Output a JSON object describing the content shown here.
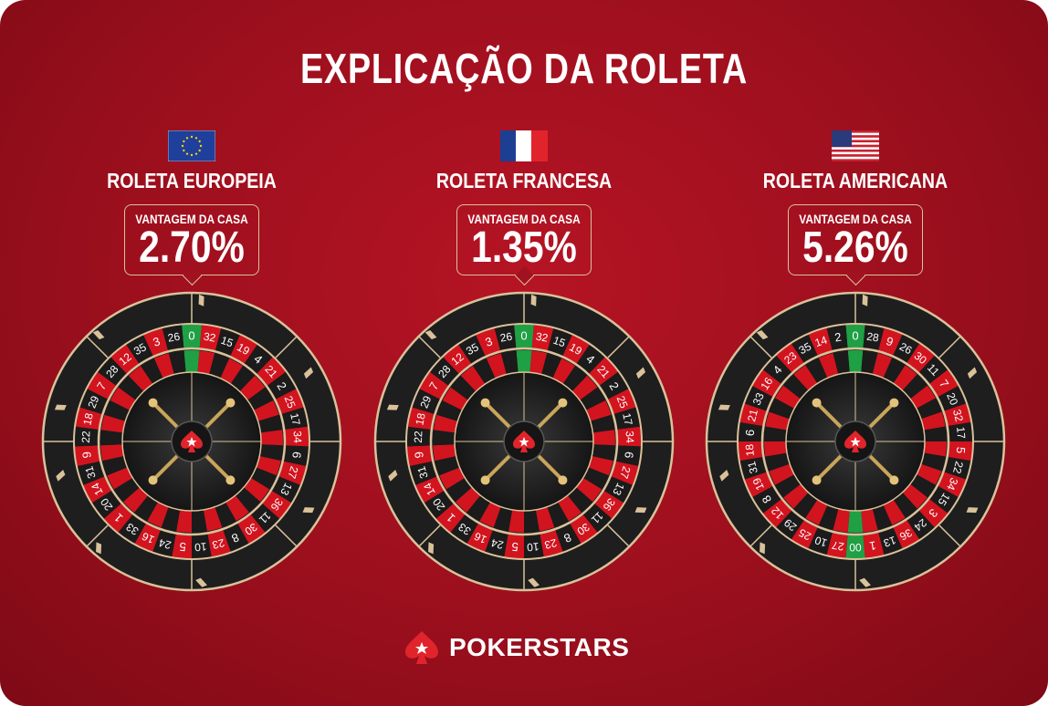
{
  "title": "EXPLICAÇÃO DA ROLETA",
  "wheels": [
    {
      "name": "ROLETA EUROPEIA",
      "flag": "eu-flag",
      "house_edge_label": "VANTAGEM DA CASA",
      "house_edge": "2.70%",
      "numbers": [
        "0",
        "32",
        "15",
        "19",
        "4",
        "21",
        "2",
        "25",
        "17",
        "34",
        "6",
        "27",
        "13",
        "36",
        "11",
        "30",
        "8",
        "23",
        "10",
        "5",
        "24",
        "16",
        "33",
        "1",
        "20",
        "14",
        "31",
        "9",
        "22",
        "18",
        "29",
        "7",
        "28",
        "12",
        "35",
        "3",
        "26"
      ]
    },
    {
      "name": "ROLETA FRANCESA",
      "flag": "france-flag",
      "house_edge_label": "VANTAGEM DA CASA",
      "house_edge": "1.35%",
      "numbers": [
        "0",
        "32",
        "15",
        "19",
        "4",
        "21",
        "2",
        "25",
        "17",
        "34",
        "6",
        "27",
        "13",
        "36",
        "11",
        "30",
        "8",
        "23",
        "10",
        "5",
        "24",
        "16",
        "33",
        "1",
        "20",
        "14",
        "31",
        "9",
        "22",
        "18",
        "29",
        "7",
        "28",
        "12",
        "35",
        "3",
        "26"
      ]
    },
    {
      "name": "ROLETA AMERICANA",
      "flag": "usa-flag",
      "house_edge_label": "VANTAGEM DA CASA",
      "house_edge": "5.26%",
      "numbers": [
        "0",
        "28",
        "9",
        "26",
        "30",
        "11",
        "7",
        "20",
        "32",
        "17",
        "5",
        "22",
        "34",
        "15",
        "3",
        "24",
        "36",
        "13",
        "1",
        "00",
        "27",
        "10",
        "25",
        "29",
        "12",
        "8",
        "19",
        "31",
        "18",
        "6",
        "21",
        "33",
        "16",
        "4",
        "23",
        "35",
        "14",
        "2"
      ]
    }
  ],
  "brand": "POKERSTARS",
  "colors": {
    "red": "#d2141f",
    "black": "#1b1b1b",
    "green": "#1fa044",
    "gold": "#d9c29a",
    "background": "#9c0f1d"
  }
}
